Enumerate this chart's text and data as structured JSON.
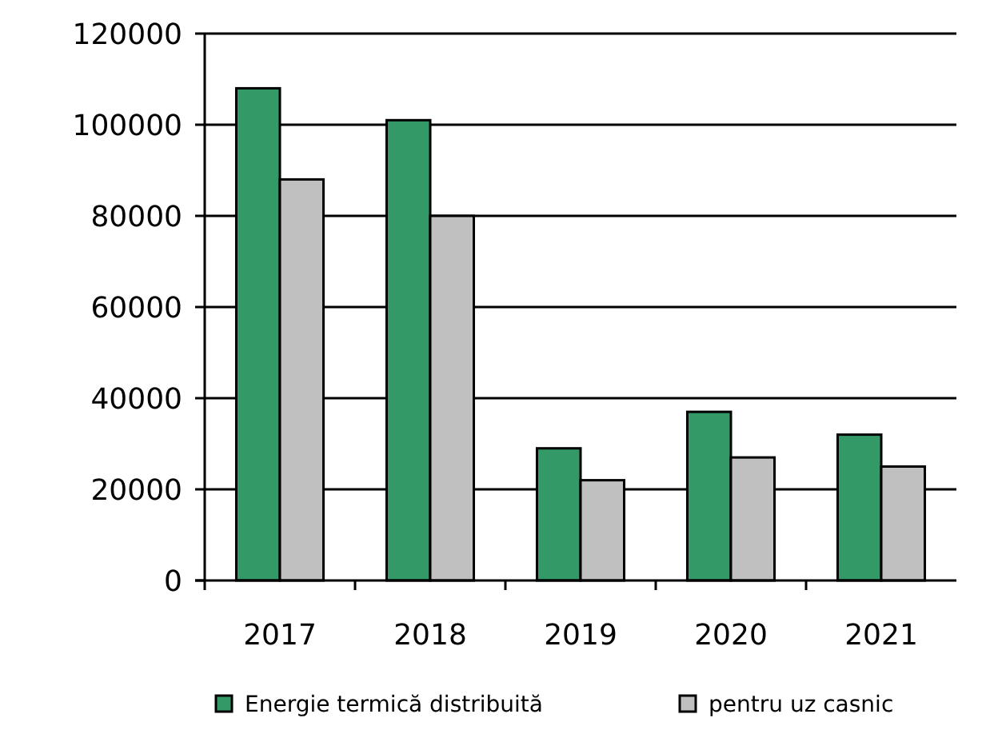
{
  "chart_data": {
    "type": "bar",
    "categories": [
      "2017",
      "2018",
      "2019",
      "2020",
      "2021"
    ],
    "series": [
      {
        "name": "Energie termică distribuită",
        "color": "#339966",
        "values": [
          108000,
          101000,
          29000,
          37000,
          32000
        ]
      },
      {
        "name": "pentru uz casnic",
        "color": "#c0c0c0",
        "values": [
          88000,
          80000,
          22000,
          27000,
          25000
        ]
      }
    ],
    "ylim": [
      0,
      120000
    ],
    "yticks": [
      0,
      20000,
      40000,
      60000,
      80000,
      100000,
      120000
    ],
    "grid": "y",
    "legend": "bottom"
  }
}
